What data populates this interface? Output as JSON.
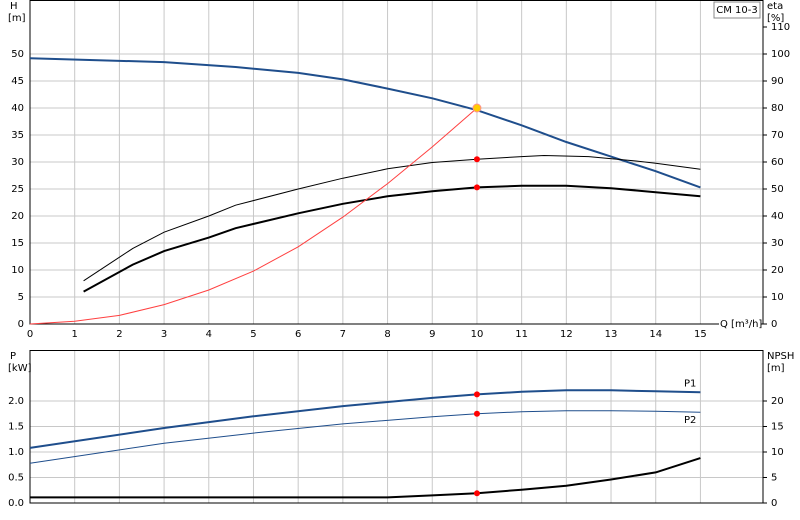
{
  "chart_data": [
    {
      "type": "line",
      "title": "CM 10-3",
      "ylabel": "H",
      "yunit": "[m]",
      "y2label": "eta",
      "y2unit": "[%]",
      "xlabel": "Q [m³/h]",
      "xlim": [
        0,
        16.4
      ],
      "xticks": [
        0,
        1,
        2,
        3,
        4,
        5,
        6,
        7,
        8,
        9,
        10,
        11,
        12,
        13,
        14,
        15
      ],
      "ylim": [
        0,
        60
      ],
      "yticks": [
        0,
        5,
        10,
        15,
        20,
        25,
        30,
        35,
        40,
        45,
        50
      ],
      "y2lim": [
        0,
        120
      ],
      "y2ticks": [
        0,
        10,
        20,
        30,
        40,
        50,
        60,
        70,
        80,
        90,
        100,
        110
      ],
      "grid": true,
      "series": [
        {
          "color": "#1f4e8c",
          "line_width": 2,
          "x": [
            0,
            3,
            4.6,
            6,
            7,
            8,
            9,
            10,
            11,
            12,
            13,
            14,
            15
          ],
          "values": [
            49.2,
            48.5,
            47.6,
            46.5,
            45.3,
            43.6,
            41.8,
            39.6,
            36.8,
            33.7,
            31.0,
            28.3,
            25.3
          ]
        },
        {
          "color": "#000000",
          "line_width": 1,
          "axis": "y2",
          "x": [
            1.2,
            2.3,
            3,
            4,
            4.6,
            6,
            7,
            8,
            9,
            10,
            11,
            11.5,
            12.5,
            13.5,
            14,
            15
          ],
          "values": [
            16,
            28,
            34,
            40,
            44,
            50,
            54,
            57.5,
            59.8,
            61,
            62,
            62.4,
            62,
            60.5,
            59.5,
            57.3
          ]
        },
        {
          "color": "#000000",
          "line_width": 2,
          "axis": "y2",
          "x": [
            1.2,
            2.3,
            3,
            4,
            4.6,
            6,
            7,
            8,
            9,
            10,
            11,
            12,
            13,
            14,
            15
          ],
          "values": [
            12,
            22,
            27,
            32,
            35.5,
            41,
            44.5,
            47.3,
            49.2,
            50.6,
            51.2,
            51.2,
            50.3,
            48.8,
            47.3
          ]
        },
        {
          "color": "#ff4040",
          "line_width": 1,
          "x": [
            0,
            1,
            2,
            3,
            4,
            5,
            6,
            7,
            8,
            9,
            10
          ],
          "values": [
            0,
            0.5,
            1.6,
            3.6,
            6.3,
            9.8,
            14.3,
            19.8,
            26,
            32.8,
            40
          ]
        }
      ],
      "markers": [
        {
          "x": 10,
          "value": 40,
          "color": "#ffcc00"
        },
        {
          "x": 10,
          "value": 61,
          "axis": "y2",
          "color": "#ff0000"
        },
        {
          "x": 10,
          "value": 50.6,
          "axis": "y2",
          "color": "#ff0000"
        }
      ]
    },
    {
      "type": "line",
      "ylabel": "P",
      "yunit": "[kW]",
      "y2label": "NPSH",
      "y2unit": "[m]",
      "xlim": [
        0,
        16.4
      ],
      "xticks": [
        0,
        1,
        2,
        3,
        4,
        5,
        6,
        7,
        8,
        9,
        10,
        11,
        12,
        13,
        14,
        15
      ],
      "ylim": [
        0,
        3
      ],
      "yticks": [
        {
          "value": 0,
          "label": "0.0"
        },
        0.5,
        {
          "value": 1,
          "label": "1.0"
        },
        1.5,
        {
          "value": 2,
          "label": "2.0"
        }
      ],
      "y2lim": [
        0,
        30
      ],
      "y2ticks": [
        0,
        5,
        10,
        15,
        20
      ],
      "grid": true,
      "series": [
        {
          "name": "P1",
          "color": "#1f4e8c",
          "line_width": 2,
          "x": [
            0,
            3,
            5,
            7,
            9,
            10,
            11,
            12,
            13,
            14,
            15
          ],
          "values": [
            1.08,
            1.47,
            1.7,
            1.9,
            2.06,
            2.13,
            2.18,
            2.21,
            2.21,
            2.19,
            2.17
          ]
        },
        {
          "name": "P2",
          "color": "#1f4e8c",
          "line_width": 1,
          "x": [
            0,
            3,
            5,
            7,
            9,
            10,
            11,
            12,
            13,
            14,
            15
          ],
          "values": [
            0.78,
            1.17,
            1.37,
            1.55,
            1.69,
            1.75,
            1.79,
            1.81,
            1.81,
            1.8,
            1.78
          ]
        },
        {
          "color": "#000000",
          "line_width": 2,
          "axis": "y2",
          "x": [
            0,
            3,
            8,
            9,
            10,
            11,
            12,
            13,
            14,
            15
          ],
          "values": [
            1.1,
            1.1,
            1.1,
            1.5,
            1.9,
            2.6,
            3.4,
            4.6,
            6.0,
            8.8
          ]
        }
      ],
      "markers": [
        {
          "x": 10,
          "value": 2.13,
          "color": "#ff0000"
        },
        {
          "x": 10,
          "value": 1.75,
          "color": "#ff0000"
        },
        {
          "x": 10,
          "value": 1.9,
          "axis": "y2",
          "color": "#ff0000"
        }
      ]
    }
  ]
}
